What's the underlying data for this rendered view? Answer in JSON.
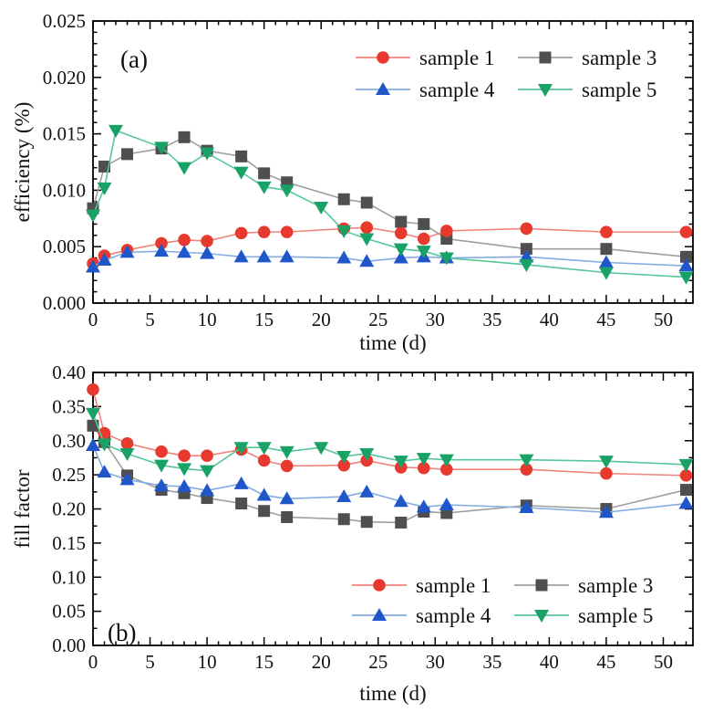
{
  "figure": {
    "x_axis_title": "time (d)",
    "panel_a_label": "(a)",
    "panel_b_label": "(b)",
    "panel_a_y_title": "efficiency (%)",
    "panel_b_y_title": "fill factor"
  },
  "legend": {
    "entries": [
      "sample 1",
      "sample 3",
      "sample 4",
      "sample 5"
    ]
  },
  "colors": {
    "sample1_marker": "#e8392f",
    "sample1_line": "#f0837b",
    "sample3_marker": "#4f4f4f",
    "sample3_line": "#9f9f9f",
    "sample4_marker": "#1f56c9",
    "sample4_line": "#84abe3",
    "sample5_marker": "#18a266",
    "sample5_line": "#57c69b",
    "axis": "#000000"
  },
  "chart_data": [
    {
      "type": "line",
      "panel_label": "(a)",
      "title": "",
      "xlabel": "time (d)",
      "ylabel": "efficiency (%)",
      "xlim": [
        0,
        52.6
      ],
      "ylim": [
        0,
        0.025
      ],
      "x_major_ticks": [
        0,
        5,
        10,
        15,
        20,
        25,
        30,
        35,
        40,
        45,
        50
      ],
      "x_minor_step": 1,
      "y_major_step": 0.005,
      "y_minor_step": 0.001,
      "y_tick_decimals": 3,
      "grid": false,
      "legend_position": "upper right inside",
      "series": [
        {
          "name": "sample 1",
          "marker": "circle",
          "color": "#e8392f",
          "line_color": "#f0837b",
          "x": [
            0,
            1,
            3,
            6,
            8,
            10,
            13,
            15,
            17,
            22,
            24,
            27,
            29,
            31,
            38,
            45,
            52
          ],
          "values": [
            0.0035,
            0.0042,
            0.0047,
            0.0053,
            0.0056,
            0.0055,
            0.0062,
            0.0063,
            0.0063,
            0.0066,
            0.0067,
            0.0062,
            0.0057,
            0.0064,
            0.0066,
            0.0063,
            0.0063
          ]
        },
        {
          "name": "sample 3",
          "marker": "square",
          "color": "#4f4f4f",
          "line_color": "#9f9f9f",
          "x": [
            0,
            1,
            3,
            6,
            8,
            10,
            13,
            15,
            17,
            22,
            24,
            27,
            29,
            31,
            38,
            45,
            52
          ],
          "values": [
            0.0084,
            0.0121,
            0.0132,
            0.0137,
            0.0147,
            0.0135,
            0.013,
            0.0115,
            0.0107,
            0.0092,
            0.0089,
            0.0072,
            0.007,
            0.0057,
            0.0048,
            0.0048,
            0.0041
          ]
        },
        {
          "name": "sample 4",
          "marker": "triangle-up",
          "color": "#1f56c9",
          "line_color": "#84abe3",
          "x": [
            0,
            1,
            3,
            6,
            8,
            10,
            13,
            15,
            17,
            22,
            24,
            27,
            29,
            31,
            38,
            45,
            52
          ],
          "values": [
            0.0032,
            0.0038,
            0.0045,
            0.0046,
            0.0045,
            0.0044,
            0.0041,
            0.0041,
            0.0041,
            0.004,
            0.0037,
            0.004,
            0.0041,
            0.004,
            0.0041,
            0.0036,
            0.0033
          ]
        },
        {
          "name": "sample 5",
          "marker": "triangle-down",
          "color": "#18a266",
          "line_color": "#57c69b",
          "x": [
            0,
            1,
            2,
            6,
            8,
            10,
            13,
            15,
            17,
            20,
            22,
            24,
            27,
            29,
            31,
            38,
            45,
            52
          ],
          "values": [
            0.0078,
            0.0102,
            0.0153,
            0.0138,
            0.012,
            0.0133,
            0.0116,
            0.0103,
            0.01,
            0.0085,
            0.0064,
            0.0057,
            0.0048,
            0.0046,
            0.004,
            0.0034,
            0.0027,
            0.0023
          ]
        }
      ],
      "draw_order": [
        1,
        0,
        2,
        3
      ]
    },
    {
      "type": "line",
      "panel_label": "(b)",
      "title": "",
      "xlabel": "time (d)",
      "ylabel": "fill factor",
      "xlim": [
        0,
        52.6
      ],
      "ylim": [
        0,
        0.4
      ],
      "x_major_ticks": [
        0,
        5,
        10,
        15,
        20,
        25,
        30,
        35,
        40,
        45,
        50
      ],
      "x_minor_step": 1,
      "y_major_step": 0.05,
      "y_minor_step": 0.025,
      "y_tick_decimals": 2,
      "grid": false,
      "legend_position": "lower right inside",
      "series": [
        {
          "name": "sample 1",
          "marker": "circle",
          "color": "#e8392f",
          "line_color": "#f0837b",
          "x": [
            0,
            1,
            3,
            6,
            8,
            10,
            13,
            15,
            17,
            22,
            24,
            27,
            29,
            31,
            38,
            45,
            52
          ],
          "values": [
            0.375,
            0.311,
            0.296,
            0.284,
            0.278,
            0.278,
            0.287,
            0.271,
            0.263,
            0.264,
            0.271,
            0.261,
            0.26,
            0.258,
            0.258,
            0.252,
            0.249
          ]
        },
        {
          "name": "sample 3",
          "marker": "square",
          "color": "#4f4f4f",
          "line_color": "#9f9f9f",
          "x": [
            0,
            1,
            3,
            6,
            8,
            10,
            13,
            15,
            17,
            22,
            24,
            27,
            29,
            31,
            38,
            45,
            52
          ],
          "values": [
            0.322,
            0.298,
            0.249,
            0.228,
            0.223,
            0.216,
            0.208,
            0.197,
            0.188,
            0.185,
            0.181,
            0.18,
            0.196,
            0.194,
            0.205,
            0.2,
            0.228
          ]
        },
        {
          "name": "sample 4",
          "marker": "triangle-up",
          "color": "#1f56c9",
          "line_color": "#84abe3",
          "x": [
            0,
            1,
            3,
            6,
            8,
            10,
            13,
            15,
            17,
            22,
            24,
            27,
            29,
            31,
            38,
            45,
            52
          ],
          "values": [
            0.293,
            0.254,
            0.243,
            0.234,
            0.233,
            0.227,
            0.237,
            0.22,
            0.215,
            0.218,
            0.225,
            0.211,
            0.203,
            0.206,
            0.202,
            0.195,
            0.208
          ]
        },
        {
          "name": "sample 5",
          "marker": "triangle-down",
          "color": "#18a266",
          "line_color": "#57c69b",
          "x": [
            0,
            1,
            3,
            6,
            8,
            10,
            13,
            15,
            17,
            20,
            22,
            24,
            27,
            29,
            31,
            38,
            45,
            52
          ],
          "values": [
            0.34,
            0.295,
            0.281,
            0.264,
            0.259,
            0.256,
            0.29,
            0.29,
            0.284,
            0.29,
            0.277,
            0.281,
            0.27,
            0.274,
            0.272,
            0.272,
            0.27,
            0.265
          ]
        }
      ],
      "draw_order": [
        1,
        0,
        2,
        3
      ]
    }
  ]
}
